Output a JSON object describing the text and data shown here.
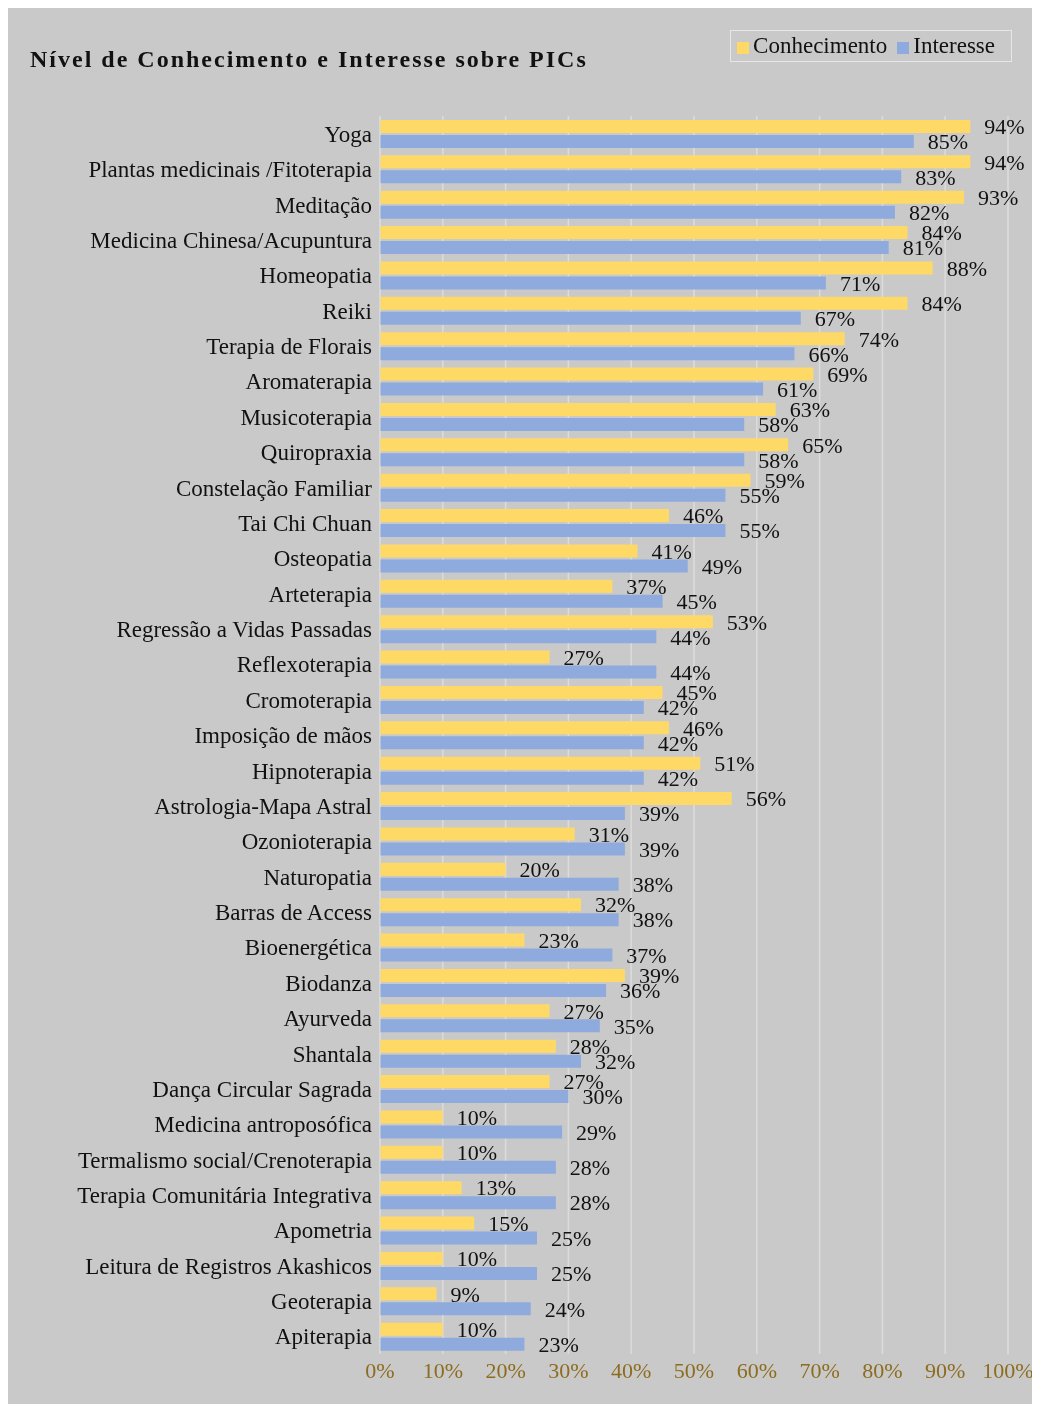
{
  "chart_data": {
    "type": "bar",
    "orientation": "horizontal",
    "title": "Nível de Conhecimento e Interesse sobre PICs",
    "categories": [
      "Yoga",
      "Plantas medicinais /Fitoterapia",
      "Meditação",
      "Medicina Chinesa/Acupuntura",
      "Homeopatia",
      "Reiki",
      "Terapia de Florais",
      "Aromaterapia",
      "Musicoterapia",
      "Quiropraxia",
      "Constelação Familiar",
      "Tai Chi Chuan",
      "Osteopatia",
      "Arteterapia",
      "Regressão a Vidas Passadas",
      "Reflexoterapia",
      "Cromoterapia",
      "Imposição de mãos",
      "Hipnoterapia",
      "Astrologia-Mapa Astral",
      "Ozonioterapia",
      "Naturopatia",
      "Barras de Access",
      "Bioenergética",
      "Biodanza",
      "Ayurveda",
      "Shantala",
      "Dança Circular Sagrada",
      "Medicina antroposófica",
      "Termalismo social/Crenoterapia",
      "Terapia Comunitária Integrativa",
      "Apometria",
      "Leitura de Registros Akashicos",
      "Geoterapia",
      "Apiterapia"
    ],
    "series": [
      {
        "name": "Conhecimento",
        "color": "#ffd966",
        "values": [
          94,
          94,
          93,
          84,
          88,
          84,
          74,
          69,
          63,
          65,
          59,
          46,
          41,
          37,
          53,
          27,
          45,
          46,
          51,
          56,
          31,
          20,
          32,
          23,
          39,
          27,
          28,
          27,
          10,
          10,
          13,
          15,
          10,
          9,
          10
        ],
        "value_labels": [
          "94%",
          "94%",
          "93%",
          "84%",
          "88%",
          "84%",
          "74%",
          "69%",
          "63%",
          "65%",
          "59%",
          "46%",
          "41%",
          "37%",
          "53%",
          "27%",
          "45%",
          "46%",
          "51%",
          "56%",
          "31%",
          "20%",
          "32%",
          "23%",
          "39%",
          "27%",
          "28%",
          "27%",
          "10%",
          "10%",
          "13%",
          "15%",
          "10%",
          "9%",
          "10%"
        ]
      },
      {
        "name": "Interesse",
        "color": "#8faadc",
        "values": [
          85,
          83,
          82,
          81,
          71,
          67,
          66,
          61,
          58,
          58,
          55,
          55,
          49,
          45,
          44,
          44,
          42,
          42,
          42,
          39,
          39,
          38,
          38,
          37,
          36,
          35,
          32,
          30,
          29,
          28,
          28,
          25,
          25,
          24,
          23
        ],
        "value_labels": [
          "85%",
          "83%",
          "82%",
          "81%",
          "71%",
          "67%",
          "66%",
          "61%",
          "58%",
          "58%",
          "55%",
          "55%",
          "49%",
          "45%",
          "44%",
          "44%",
          "42%",
          "42%",
          "42%",
          "39%",
          "39%",
          "38%",
          "38%",
          "37%",
          "36%",
          "35%",
          "32%",
          "30%",
          "29%",
          "28%",
          "28%",
          "25%",
          "25%",
          "24%",
          "23%"
        ]
      }
    ],
    "xlim": [
      0,
      100
    ],
    "xticks": [
      {
        "value": 0,
        "label": "0%"
      },
      {
        "value": 10,
        "label": "10%"
      },
      {
        "value": 20,
        "label": "20%"
      },
      {
        "value": 30,
        "label": "30%"
      },
      {
        "value": 40,
        "label": "40%"
      },
      {
        "value": 50,
        "label": "50%"
      },
      {
        "value": 60,
        "label": "60%"
      },
      {
        "value": 70,
        "label": "70%"
      },
      {
        "value": 80,
        "label": "80%"
      },
      {
        "value": 90,
        "label": "90%"
      },
      {
        "value": 100,
        "label": "100%"
      }
    ],
    "grid": "x",
    "legend": "top right"
  }
}
